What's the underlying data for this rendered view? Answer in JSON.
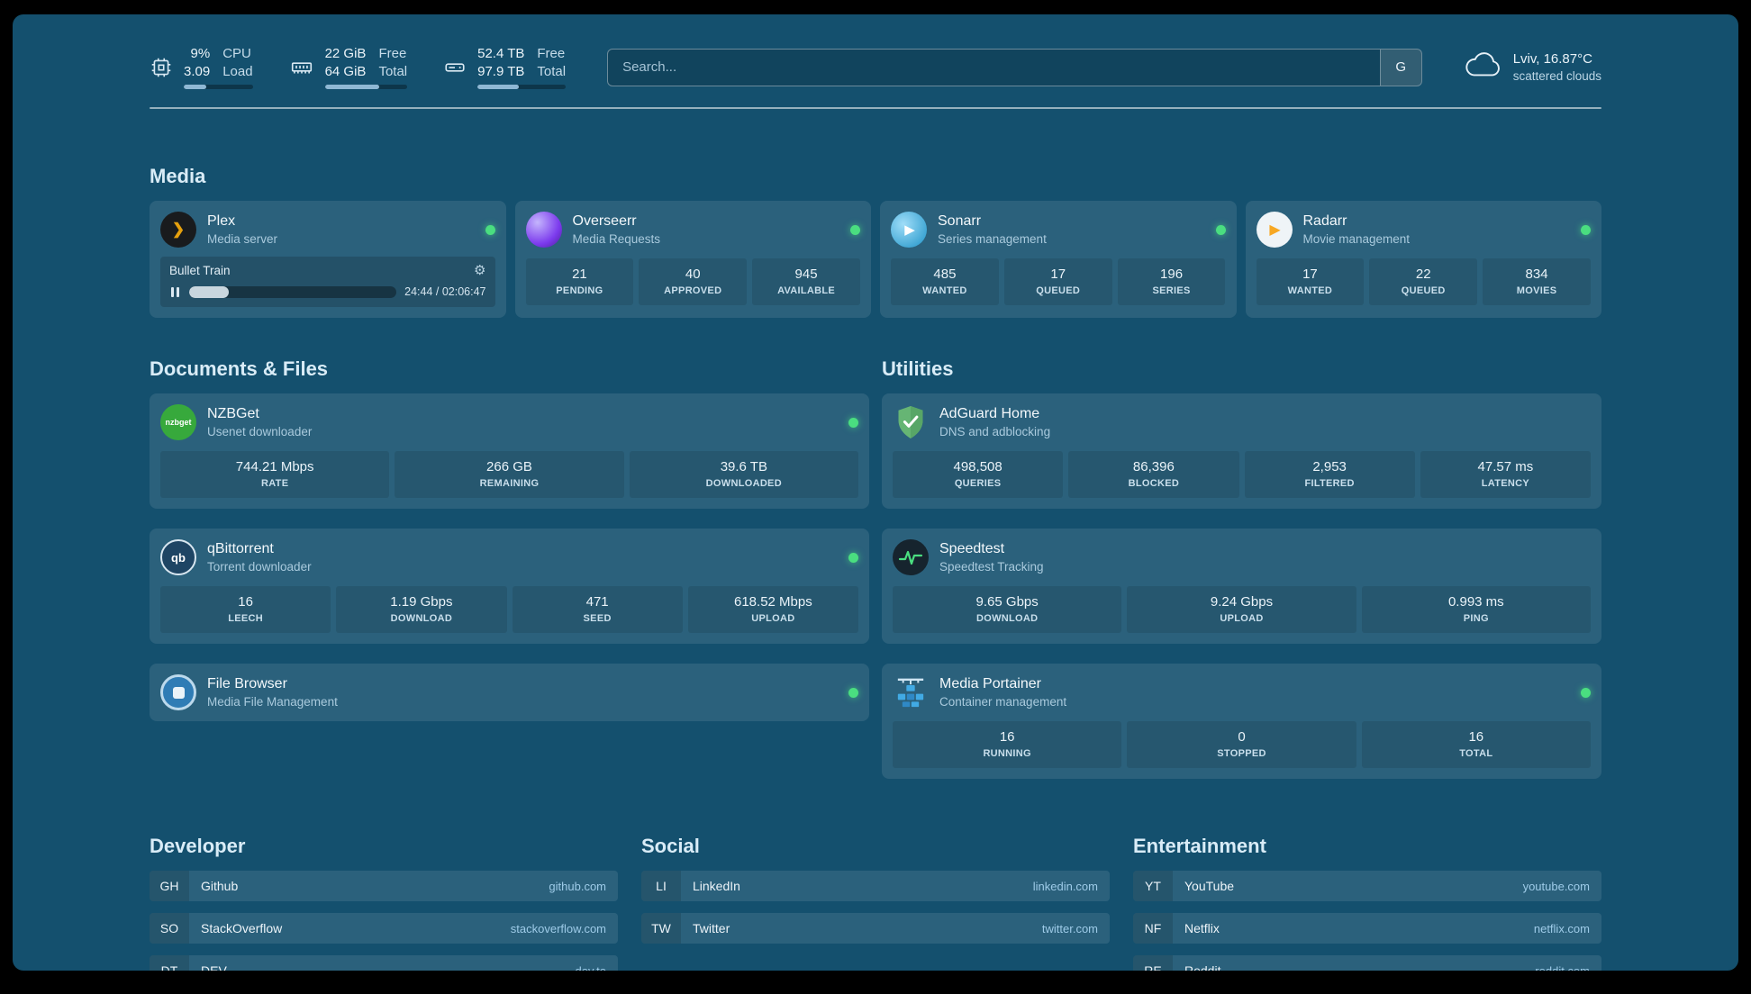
{
  "topbar": {
    "cpu": {
      "value1": "9%",
      "label1": "CPU",
      "value2": "3.09",
      "label2": "Load",
      "progress_pct": 33
    },
    "memory": {
      "value1": "22 GiB",
      "label1": "Free",
      "value2": "64 GiB",
      "label2": "Total",
      "progress_pct": 66
    },
    "disk": {
      "value1": "52.4 TB",
      "label1": "Free",
      "value2": "97.9 TB",
      "label2": "Total",
      "progress_pct": 47
    },
    "search": {
      "placeholder": "Search...",
      "provider": "G"
    },
    "weather": {
      "location": "Lviv, 16.87°C",
      "condition": "scattered clouds"
    }
  },
  "media": {
    "title": "Media",
    "plex": {
      "name": "Plex",
      "desc": "Media server",
      "now_playing": {
        "title": "Bullet Train",
        "time": "24:44 / 02:06:47",
        "progress_pct": 19
      }
    },
    "overseerr": {
      "name": "Overseerr",
      "desc": "Media Requests",
      "stats": [
        {
          "value": "21",
          "label": "PENDING"
        },
        {
          "value": "40",
          "label": "APPROVED"
        },
        {
          "value": "945",
          "label": "AVAILABLE"
        }
      ]
    },
    "sonarr": {
      "name": "Sonarr",
      "desc": "Series management",
      "stats": [
        {
          "value": "485",
          "label": "WANTED"
        },
        {
          "value": "17",
          "label": "QUEUED"
        },
        {
          "value": "196",
          "label": "SERIES"
        }
      ]
    },
    "radarr": {
      "name": "Radarr",
      "desc": "Movie management",
      "stats": [
        {
          "value": "17",
          "label": "WANTED"
        },
        {
          "value": "22",
          "label": "QUEUED"
        },
        {
          "value": "834",
          "label": "MOVIES"
        }
      ]
    }
  },
  "documents": {
    "title": "Documents & Files",
    "nzbget": {
      "name": "NZBGet",
      "desc": "Usenet downloader",
      "icon_text": "nzbget",
      "stats": [
        {
          "value": "744.21 Mbps",
          "label": "RATE"
        },
        {
          "value": "266 GB",
          "label": "REMAINING"
        },
        {
          "value": "39.6 TB",
          "label": "DOWNLOADED"
        }
      ]
    },
    "qbittorrent": {
      "name": "qBittorrent",
      "desc": "Torrent downloader",
      "icon_text": "qb",
      "stats": [
        {
          "value": "16",
          "label": "LEECH"
        },
        {
          "value": "1.19 Gbps",
          "label": "DOWNLOAD"
        },
        {
          "value": "471",
          "label": "SEED"
        },
        {
          "value": "618.52 Mbps",
          "label": "UPLOAD"
        }
      ]
    },
    "filebrowser": {
      "name": "File Browser",
      "desc": "Media File Management"
    }
  },
  "utilities": {
    "title": "Utilities",
    "adguard": {
      "name": "AdGuard Home",
      "desc": "DNS and adblocking",
      "stats": [
        {
          "value": "498,508",
          "label": "QUERIES"
        },
        {
          "value": "86,396",
          "label": "BLOCKED"
        },
        {
          "value": "2,953",
          "label": "FILTERED"
        },
        {
          "value": "47.57 ms",
          "label": "LATENCY"
        }
      ]
    },
    "speedtest": {
      "name": "Speedtest",
      "desc": "Speedtest Tracking",
      "stats": [
        {
          "value": "9.65 Gbps",
          "label": "DOWNLOAD"
        },
        {
          "value": "9.24 Gbps",
          "label": "UPLOAD"
        },
        {
          "value": "0.993 ms",
          "label": "PING"
        }
      ]
    },
    "portainer": {
      "name": "Media Portainer",
      "desc": "Container management",
      "stats": [
        {
          "value": "16",
          "label": "RUNNING"
        },
        {
          "value": "0",
          "label": "STOPPED"
        },
        {
          "value": "16",
          "label": "TOTAL"
        }
      ]
    }
  },
  "bookmarks": {
    "developer": {
      "title": "Developer",
      "items": [
        {
          "abbr": "GH",
          "name": "Github",
          "url": "github.com"
        },
        {
          "abbr": "SO",
          "name": "StackOverflow",
          "url": "stackoverflow.com"
        },
        {
          "abbr": "DT",
          "name": "DEV",
          "url": "dev.to"
        }
      ]
    },
    "social": {
      "title": "Social",
      "items": [
        {
          "abbr": "LI",
          "name": "LinkedIn",
          "url": "linkedin.com"
        },
        {
          "abbr": "TW",
          "name": "Twitter",
          "url": "twitter.com"
        }
      ]
    },
    "entertainment": {
      "title": "Entertainment",
      "items": [
        {
          "abbr": "YT",
          "name": "YouTube",
          "url": "youtube.com"
        },
        {
          "abbr": "NF",
          "name": "Netflix",
          "url": "netflix.com"
        },
        {
          "abbr": "RE",
          "name": "Reddit",
          "url": "reddit.com"
        }
      ]
    }
  },
  "colors": {
    "background": "#14506E",
    "card": "rgba(255,255,255,0.10)",
    "status_online": "#4ADE80",
    "bookmark_url": "#9ECBE8",
    "plex_accent": "#E5A00D",
    "adguard_green": "#66B574",
    "speedtest_wave": "#4ADE80"
  }
}
